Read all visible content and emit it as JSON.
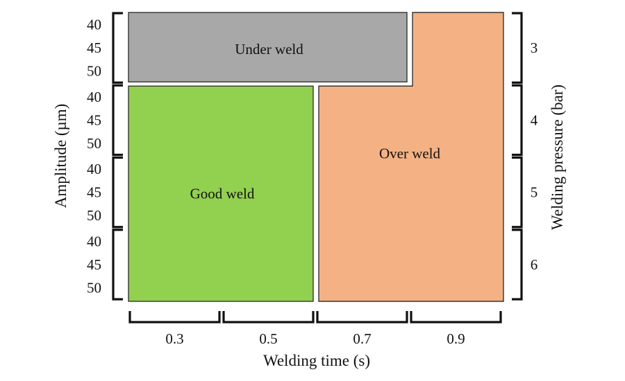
{
  "chart_data": {
    "type": "heatmap",
    "title": "",
    "xlabel": "Welding time (s)",
    "ylabel_left": "Amplitude (µm)",
    "ylabel_right": "Welding pressure (bar)",
    "x_categories": [
      "0.3",
      "0.5",
      "0.7",
      "0.9"
    ],
    "pressure_groups": [
      {
        "pressure": "3",
        "amplitudes": [
          "40",
          "45",
          "50"
        ]
      },
      {
        "pressure": "4",
        "amplitudes": [
          "40",
          "45",
          "50"
        ]
      },
      {
        "pressure": "5",
        "amplitudes": [
          "40",
          "45",
          "50"
        ]
      },
      {
        "pressure": "6",
        "amplitudes": [
          "40",
          "45",
          "50"
        ]
      }
    ],
    "regions": [
      {
        "label": "Under weld",
        "color": "#a8a8a8",
        "cells": "pressure 3 bar, all amplitudes, welding time 0.3–0.7 s"
      },
      {
        "label": "Good weld",
        "color": "#92d050",
        "cells": "pressure 4–6 bar, all amplitudes, welding time 0.3–0.5 s"
      },
      {
        "label": "Over weld",
        "color": "#f4b183",
        "cells": "pressure 3 bar at 0.9 s; pressure 4–6 bar at 0.7–0.9 s"
      }
    ],
    "grid": false,
    "legend": "none"
  }
}
